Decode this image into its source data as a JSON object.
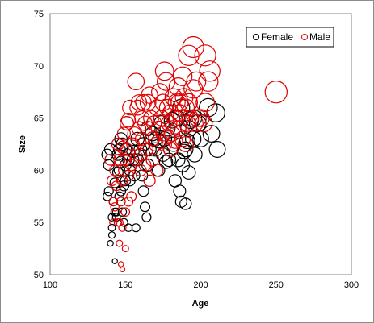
{
  "chart_data": {
    "type": "scatter",
    "title": "",
    "xlabel": "Age",
    "ylabel": "Size",
    "xlim": [
      100,
      300
    ],
    "ylim": [
      50,
      75
    ],
    "xticks": [
      100,
      150,
      200,
      250,
      300
    ],
    "yticks": [
      50,
      55,
      60,
      65,
      70,
      75
    ],
    "grid": false,
    "legend_position": "top-right",
    "marker": "open-circle, size scales with value",
    "series": [
      {
        "name": "Female",
        "color": "#000000",
        "points": [
          [
            138,
            61.5
          ],
          [
            140,
            62
          ],
          [
            139,
            60.5
          ],
          [
            138,
            57.5
          ],
          [
            141,
            55.5
          ],
          [
            140,
            53
          ],
          [
            141,
            53.8
          ],
          [
            143,
            51.3
          ],
          [
            141,
            54.5
          ],
          [
            139,
            58
          ],
          [
            142,
            57
          ],
          [
            143,
            56
          ],
          [
            144,
            55.5
          ],
          [
            145,
            61.5
          ],
          [
            146,
            60
          ],
          [
            147,
            63
          ],
          [
            147,
            58
          ],
          [
            148,
            56
          ],
          [
            149,
            55
          ],
          [
            150,
            60.5
          ],
          [
            150,
            62
          ],
          [
            151,
            64.5
          ],
          [
            152,
            61
          ],
          [
            153,
            59
          ],
          [
            155,
            61.8
          ],
          [
            157,
            54.5
          ],
          [
            152,
            54.5
          ],
          [
            158,
            63
          ],
          [
            160,
            61.5
          ],
          [
            161,
            59.5
          ],
          [
            162,
            58
          ],
          [
            163,
            56.5
          ],
          [
            164,
            55.5
          ],
          [
            165,
            60.5
          ],
          [
            166,
            62
          ],
          [
            168,
            61
          ],
          [
            170,
            63
          ],
          [
            172,
            60
          ],
          [
            175,
            61.5
          ],
          [
            177,
            60.8
          ],
          [
            180,
            62
          ],
          [
            182,
            62.5
          ],
          [
            183,
            59
          ],
          [
            185,
            61
          ],
          [
            186,
            58
          ],
          [
            187,
            57
          ],
          [
            188,
            60.5
          ],
          [
            190,
            56.8
          ],
          [
            192,
            59.8
          ],
          [
            195,
            63
          ],
          [
            196,
            61.5
          ],
          [
            198,
            64.5
          ],
          [
            200,
            63
          ],
          [
            205,
            66
          ],
          [
            207,
            63.5
          ],
          [
            210,
            65.5
          ],
          [
            211,
            62
          ],
          [
            178,
            64
          ],
          [
            181,
            64.8
          ],
          [
            184,
            65
          ],
          [
            187,
            66
          ],
          [
            189,
            61.8
          ],
          [
            191,
            62.8
          ],
          [
            193,
            64.8
          ],
          [
            185,
            64
          ],
          [
            170,
            62
          ],
          [
            160,
            62
          ],
          [
            155,
            61
          ],
          [
            149,
            58.5
          ],
          [
            146,
            57.5
          ],
          [
            144,
            56
          ],
          [
            143,
            58.8
          ],
          [
            145,
            59.8
          ],
          [
            147,
            60.8
          ],
          [
            148,
            62.5
          ],
          [
            156,
            59.5
          ],
          [
            158,
            61
          ],
          [
            162,
            62.5
          ],
          [
            165,
            64
          ],
          [
            168,
            63.5
          ],
          [
            172,
            62.8
          ],
          [
            174,
            64.5
          ],
          [
            176,
            63
          ],
          [
            179,
            61
          ],
          [
            190,
            62
          ],
          [
            192,
            64
          ],
          [
            195,
            65
          ],
          [
            153,
            60
          ],
          [
            150,
            59
          ],
          [
            146,
            62
          ]
        ]
      },
      {
        "name": "Male",
        "color": "#e00000",
        "points": [
          [
            140,
            61
          ],
          [
            141,
            59
          ],
          [
            142,
            57
          ],
          [
            142,
            55
          ],
          [
            143,
            56.5
          ],
          [
            144,
            58.5
          ],
          [
            145,
            55
          ],
          [
            146,
            53
          ],
          [
            147,
            51
          ],
          [
            148,
            50.5
          ],
          [
            147,
            57
          ],
          [
            148,
            59
          ],
          [
            149,
            60
          ],
          [
            150,
            52.5
          ],
          [
            150,
            61
          ],
          [
            151,
            62
          ],
          [
            152,
            57
          ],
          [
            152,
            59.5
          ],
          [
            154,
            60.5
          ],
          [
            155,
            62.5
          ],
          [
            156,
            63.5
          ],
          [
            157,
            68.5
          ],
          [
            158,
            66
          ],
          [
            159,
            64
          ],
          [
            160,
            61.5
          ],
          [
            161,
            65
          ],
          [
            162,
            66.5
          ],
          [
            163,
            64.5
          ],
          [
            164,
            62
          ],
          [
            165,
            66.5
          ],
          [
            166,
            67.2
          ],
          [
            167,
            65
          ],
          [
            168,
            63
          ],
          [
            169,
            64.5
          ],
          [
            170,
            62.5
          ],
          [
            171,
            66
          ],
          [
            172,
            64
          ],
          [
            173,
            67.5
          ],
          [
            174,
            65
          ],
          [
            175,
            63.5
          ],
          [
            176,
            69.5
          ],
          [
            177,
            68.5
          ],
          [
            178,
            66
          ],
          [
            179,
            64.5
          ],
          [
            180,
            62
          ],
          [
            181,
            63.5
          ],
          [
            182,
            67
          ],
          [
            183,
            65
          ],
          [
            184,
            66.5
          ],
          [
            185,
            64
          ],
          [
            186,
            66.5
          ],
          [
            187,
            65
          ],
          [
            188,
            69
          ],
          [
            189,
            67
          ],
          [
            190,
            66
          ],
          [
            191,
            64.5
          ],
          [
            192,
            66.5
          ],
          [
            193,
            65
          ],
          [
            195,
            67.8
          ],
          [
            197,
            68.5
          ],
          [
            195,
            71.8
          ],
          [
            192,
            71
          ],
          [
            203,
            71
          ],
          [
            205,
            68.5
          ],
          [
            206,
            69.5
          ],
          [
            200,
            65
          ],
          [
            202,
            64.5
          ],
          [
            203,
            66.5
          ],
          [
            250,
            67.5
          ],
          [
            146,
            61
          ],
          [
            145,
            62.5
          ],
          [
            143,
            60
          ],
          [
            148,
            62.2
          ],
          [
            151,
            64.5
          ],
          [
            153,
            66
          ],
          [
            157,
            61
          ],
          [
            159,
            66.5
          ],
          [
            161,
            63
          ],
          [
            163,
            60.5
          ],
          [
            166,
            59
          ],
          [
            168,
            61
          ],
          [
            171,
            60
          ],
          [
            176,
            62.5
          ],
          [
            180,
            65.5
          ],
          [
            185,
            68
          ],
          [
            188,
            63
          ],
          [
            190,
            62.5
          ],
          [
            196,
            64.5
          ],
          [
            198,
            65
          ],
          [
            154,
            57.5
          ],
          [
            150,
            56
          ],
          [
            148,
            54.5
          ],
          [
            146,
            55
          ],
          [
            149,
            63.5
          ],
          [
            152,
            64.8
          ],
          [
            175,
            66.5
          ],
          [
            178,
            63.2
          ],
          [
            183,
            62.8
          ],
          [
            186,
            65.5
          ],
          [
            160,
            60
          ]
        ]
      }
    ]
  }
}
